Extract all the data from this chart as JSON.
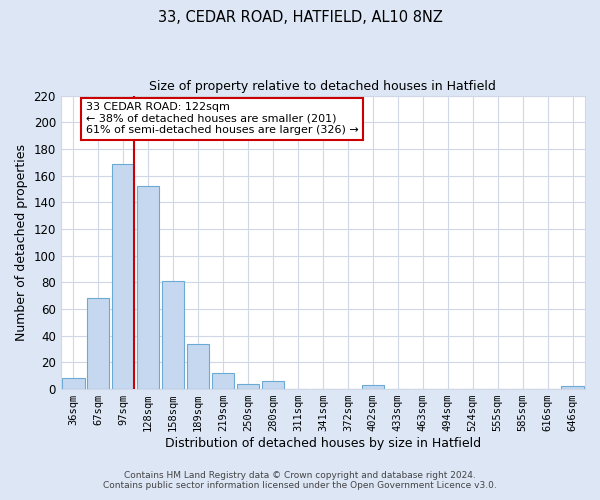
{
  "title": "33, CEDAR ROAD, HATFIELD, AL10 8NZ",
  "subtitle": "Size of property relative to detached houses in Hatfield",
  "xlabel": "Distribution of detached houses by size in Hatfield",
  "ylabel": "Number of detached properties",
  "bar_labels": [
    "36sqm",
    "67sqm",
    "97sqm",
    "128sqm",
    "158sqm",
    "189sqm",
    "219sqm",
    "250sqm",
    "280sqm",
    "311sqm",
    "341sqm",
    "372sqm",
    "402sqm",
    "433sqm",
    "463sqm",
    "494sqm",
    "524sqm",
    "555sqm",
    "585sqm",
    "616sqm",
    "646sqm"
  ],
  "bar_values": [
    8,
    68,
    169,
    152,
    81,
    34,
    12,
    4,
    6,
    0,
    0,
    0,
    3,
    0,
    0,
    0,
    0,
    0,
    0,
    0,
    2
  ],
  "bar_color": "#c5d8f0",
  "bar_edgecolor": "#6aaad4",
  "ylim": [
    0,
    220
  ],
  "yticks": [
    0,
    20,
    40,
    60,
    80,
    100,
    120,
    140,
    160,
    180,
    200,
    220
  ],
  "vline_color": "#cc0000",
  "annotation_title": "33 CEDAR ROAD: 122sqm",
  "annotation_line1": "← 38% of detached houses are smaller (201)",
  "annotation_line2": "61% of semi-detached houses are larger (326) →",
  "annotation_box_facecolor": "#ffffff",
  "annotation_box_edgecolor": "#cc0000",
  "footer1": "Contains HM Land Registry data © Crown copyright and database right 2024.",
  "footer2": "Contains public sector information licensed under the Open Government Licence v3.0.",
  "fig_facecolor": "#dce6f5",
  "axes_facecolor": "#ffffff",
  "grid_color": "#d0d8e8"
}
